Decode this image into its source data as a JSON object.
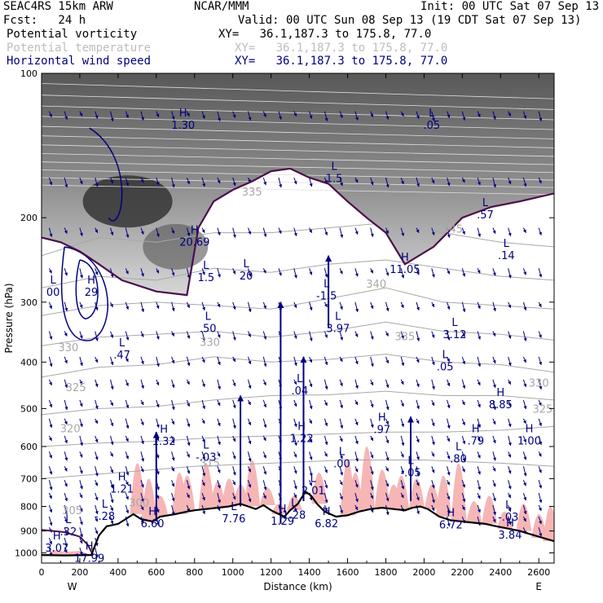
{
  "header": {
    "model": "SEAC4RS 15km ARW",
    "center": "NCAR/MMM",
    "init": "Init: 00 UTC Sat 07 Sep 13",
    "fcst": "Fcst:   24 h",
    "valid": "Valid: 00 UTC Sun 08 Sep 13 (19 CDT Sat 07 Sep 13)"
  },
  "fields": [
    {
      "name": "Potential vorticity",
      "xy": "XY=   36.1,187.3 to 175.8, 77.0",
      "color": "#000000"
    },
    {
      "name": "Potential temperature",
      "xy": "XY=   36.1,187.3 to 175.8, 77.0",
      "color": "#bdbdbd"
    },
    {
      "name": "Horizontal wind speed",
      "xy": "XY=   36.1,187.3 to 175.8, 77.0",
      "color": "#000080"
    }
  ],
  "chart_data": {
    "type": "cross-section",
    "xlabel": "Distance (km)",
    "ylabel": "Pressure (hPa)",
    "xlim": [
      0,
      2680
    ],
    "ylim": [
      1050,
      100
    ],
    "y_scale": "log",
    "x_ticks": [
      0,
      200,
      400,
      600,
      800,
      1000,
      1200,
      1400,
      1600,
      1800,
      2000,
      2200,
      2400,
      2600
    ],
    "y_ticks": [
      100,
      200,
      300,
      400,
      500,
      600,
      700,
      800,
      900,
      1000
    ],
    "end_labels": {
      "left": "W",
      "right": "E"
    },
    "colors": {
      "terrain": "#000000",
      "theta": "#a8a8a8",
      "wind": "#000080",
      "pv_contour": "#4b0f4b",
      "pv_fill": "#f6b6b6"
    },
    "theta_labels": [
      {
        "text": "330",
        "x": 140,
        "p": 380
      },
      {
        "text": "325",
        "x": 180,
        "p": 460
      },
      {
        "text": "320",
        "x": 150,
        "p": 560
      },
      {
        "text": "315",
        "x": 880,
        "p": 660
      },
      {
        "text": "330",
        "x": 880,
        "p": 370
      },
      {
        "text": "335",
        "x": 1100,
        "p": 180
      },
      {
        "text": "335",
        "x": 1900,
        "p": 360
      },
      {
        "text": "340",
        "x": 1750,
        "p": 280
      },
      {
        "text": "345",
        "x": 2150,
        "p": 215
      },
      {
        "text": "330",
        "x": 2600,
        "p": 450
      },
      {
        "text": "325",
        "x": 2620,
        "p": 510
      },
      {
        "text": "305",
        "x": 160,
        "p": 830
      },
      {
        "text": "300",
        "x": 510,
        "p": 800
      }
    ],
    "extrema": [
      {
        "kind": "H",
        "value": "20.69",
        "x": 800,
        "p": 228
      },
      {
        "kind": "H",
        "value": "29",
        "x": 260,
        "p": 290
      },
      {
        "kind": "L",
        "value": "00",
        "x": 60,
        "p": 290
      },
      {
        "kind": "L",
        "value": "20",
        "x": 1070,
        "p": 268
      },
      {
        "kind": "L",
        "value": "1.5",
        "x": 860,
        "p": 270
      },
      {
        "kind": "L",
        "value": "-1.5",
        "x": 1490,
        "p": 295
      },
      {
        "kind": "H",
        "value": "11.05",
        "x": 1900,
        "p": 260
      },
      {
        "kind": "L",
        "value": "3.97",
        "x": 1550,
        "p": 345
      },
      {
        "kind": "L",
        "value": "3.12",
        "x": 2160,
        "p": 355
      },
      {
        "kind": "L",
        "value": ".05",
        "x": 2110,
        "p": 415
      },
      {
        "kind": "L",
        "value": ".57",
        "x": 2320,
        "p": 200
      },
      {
        "kind": "L",
        "value": ".05",
        "x": 2040,
        "p": 130
      },
      {
        "kind": "L",
        "value": ".14",
        "x": 2430,
        "p": 243
      },
      {
        "kind": "L",
        "value": ".50",
        "x": 870,
        "p": 345
      },
      {
        "kind": "L",
        "value": ".47",
        "x": 420,
        "p": 392
      },
      {
        "kind": "L",
        "value": ".04",
        "x": 1350,
        "p": 465
      },
      {
        "kind": "H",
        "value": "8.85",
        "x": 2400,
        "p": 497
      },
      {
        "kind": "H",
        "value": ".97",
        "x": 1780,
        "p": 560
      },
      {
        "kind": "H",
        "value": "1.22",
        "x": 1360,
        "p": 585
      },
      {
        "kind": "H",
        "value": "1.32",
        "x": 640,
        "p": 593
      },
      {
        "kind": "H",
        "value": ".79",
        "x": 2270,
        "p": 592
      },
      {
        "kind": "H",
        "value": "1.00",
        "x": 2550,
        "p": 592
      },
      {
        "kind": "L",
        "value": "-.03",
        "x": 860,
        "p": 640
      },
      {
        "kind": "L",
        "value": ".80",
        "x": 2180,
        "p": 645
      },
      {
        "kind": "L",
        "value": "-.05",
        "x": 1930,
        "p": 690
      },
      {
        "kind": "H",
        "value": "1.21",
        "x": 420,
        "p": 745
      },
      {
        "kind": "L",
        "value": "-.28",
        "x": 330,
        "p": 850
      },
      {
        "kind": "L",
        "value": ".32",
        "x": 140,
        "p": 915
      },
      {
        "kind": "H",
        "value": "6.60",
        "x": 580,
        "p": 880
      },
      {
        "kind": "L",
        "value": "7.76",
        "x": 1005,
        "p": 860
      },
      {
        "kind": "H",
        "value": "1.29",
        "x": 1260,
        "p": 870
      },
      {
        "kind": "L",
        "value": "1.28",
        "x": 1320,
        "p": 845
      },
      {
        "kind": "H",
        "value": "6.82",
        "x": 1490,
        "p": 880
      },
      {
        "kind": "H",
        "value": "6.72",
        "x": 2140,
        "p": 885
      },
      {
        "kind": "L",
        "value": "-.03",
        "x": 2440,
        "p": 853
      },
      {
        "kind": "H",
        "value": "3.84",
        "x": 2450,
        "p": 930
      },
      {
        "kind": "H",
        "value": "3.07",
        "x": 80,
        "p": 990
      },
      {
        "kind": "H",
        "value": "17.99",
        "x": 250,
        "p": 1040
      },
      {
        "kind": "L",
        "value": "2.01",
        "x": 1420,
        "p": 752
      },
      {
        "kind": "L",
        "value": "1.5",
        "x": 1530,
        "p": 168
      },
      {
        "kind": "H",
        "value": "1.30",
        "x": 740,
        "p": 130
      },
      {
        "kind": "L",
        "value": ".00",
        "x": 1570,
        "p": 660
      }
    ]
  }
}
